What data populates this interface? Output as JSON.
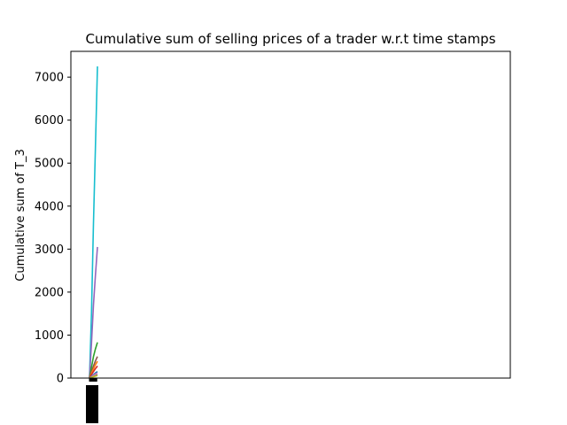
{
  "chart_data": {
    "type": "line",
    "title": "Cumulative sum of selling prices of a trader w.r.t time stamps",
    "xlabel": "",
    "ylabel": "Cumulative sum of T_3",
    "ylim": [
      0,
      7600
    ],
    "yticks": [
      0,
      1000,
      2000,
      3000,
      4000,
      5000,
      6000,
      7000
    ],
    "legend": "none",
    "grid": false,
    "x_tick_labels": [
      "",
      "",
      "",
      "",
      "",
      "",
      "",
      "",
      "",
      "",
      "",
      ""
    ],
    "series": [
      {
        "color": "#17becf",
        "values": [
          0,
          1500,
          3600,
          5400,
          7250
        ]
      },
      {
        "color": "#9467bd",
        "values": [
          0,
          800,
          1700,
          2400,
          3050
        ]
      },
      {
        "color": "#2ca02c",
        "values": [
          0,
          250,
          500,
          680,
          830
        ]
      },
      {
        "color": "#8c564b",
        "values": [
          0,
          150,
          280,
          400,
          500
        ]
      },
      {
        "color": "#ff7f0e",
        "values": [
          0,
          110,
          210,
          310,
          390
        ]
      },
      {
        "color": "#d62728",
        "values": [
          0,
          80,
          150,
          220,
          280
        ]
      },
      {
        "color": "#1f77b4",
        "values": [
          0,
          40,
          80,
          120,
          150
        ]
      },
      {
        "color": "#e377c2",
        "values": [
          0,
          30,
          60,
          90,
          110
        ]
      },
      {
        "color": "#7f7f7f",
        "values": [
          0,
          20,
          40,
          60,
          80
        ]
      },
      {
        "color": "#bcbd22",
        "values": [
          0,
          15,
          30,
          45,
          60
        ]
      }
    ]
  }
}
